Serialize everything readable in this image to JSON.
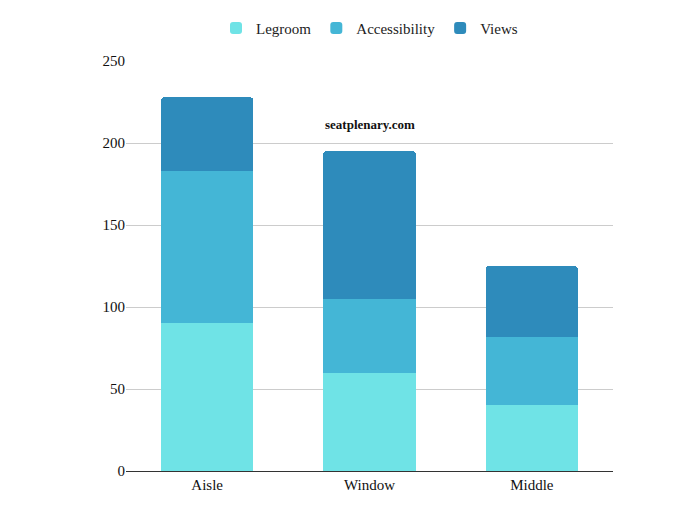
{
  "chart_data": {
    "type": "bar",
    "stacked": true,
    "categories": [
      "Aisle",
      "Window",
      "Middle"
    ],
    "series": [
      {
        "name": "Legroom",
        "color": "#6fe3e6",
        "values": [
          90,
          60,
          40
        ]
      },
      {
        "name": "Accessibility",
        "color": "#44b6d6",
        "values": [
          93,
          45,
          42
        ]
      },
      {
        "name": "Views",
        "color": "#2e8bbb",
        "values": [
          45,
          90,
          43
        ]
      }
    ],
    "ylim": [
      0,
      250
    ],
    "yticks": [
      0,
      50,
      100,
      150,
      200,
      250
    ],
    "grid": true,
    "legend": "top",
    "annotations": [
      {
        "text": "seatplenary.com",
        "x": "Window",
        "y": 211
      }
    ]
  }
}
